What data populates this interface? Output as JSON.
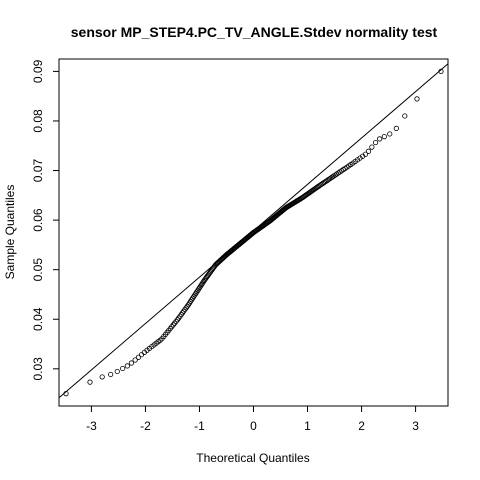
{
  "chart_data": {
    "type": "scatter",
    "subtype": "qq-plot",
    "title": "sensor MP_STEP4.PC_TV_ANGLE.Stdev normality test",
    "xlabel": "Theoretical Quantiles",
    "ylabel": "Sample Quantiles",
    "xlim": [
      -3.6,
      3.6
    ],
    "ylim": [
      0.0225,
      0.0925
    ],
    "xticks": [
      -3,
      -2,
      -1,
      0,
      1,
      2,
      3
    ],
    "yticks": [
      0.03,
      0.04,
      0.05,
      0.06,
      0.07,
      0.08,
      0.09
    ],
    "xtick_labels": [
      "-3",
      "-2",
      "-1",
      "0",
      "1",
      "2",
      "3"
    ],
    "ytick_labels": [
      "0.03",
      "0.04",
      "0.05",
      "0.06",
      "0.07",
      "0.08",
      "0.09"
    ],
    "grid": false,
    "marker": "open-circle",
    "reference_line": {
      "slope": 0.009357,
      "intercept": 0.05785
    },
    "quantile_curve": [
      [
        -3.47,
        0.025
      ],
      [
        -3.2,
        0.0255
      ],
      [
        -2.98,
        0.0278
      ],
      [
        -2.6,
        0.029
      ],
      [
        -2.3,
        0.0308
      ],
      [
        -2.0,
        0.0335
      ],
      [
        -1.7,
        0.036
      ],
      [
        -1.4,
        0.04
      ],
      [
        -1.2,
        0.043
      ],
      [
        -0.9,
        0.048
      ],
      [
        -0.7,
        0.051
      ],
      [
        -0.5,
        0.053
      ],
      [
        -0.3,
        0.0548
      ],
      [
        0.0,
        0.0575
      ],
      [
        0.3,
        0.0598
      ],
      [
        0.6,
        0.0625
      ],
      [
        0.9,
        0.0645
      ],
      [
        1.2,
        0.0668
      ],
      [
        1.5,
        0.069
      ],
      [
        1.8,
        0.0712
      ],
      [
        2.1,
        0.0735
      ],
      [
        2.3,
        0.0762
      ],
      [
        2.6,
        0.0778
      ],
      [
        2.8,
        0.081
      ],
      [
        3.0,
        0.0843
      ],
      [
        3.15,
        0.0852
      ],
      [
        3.47,
        0.09
      ]
    ],
    "n_points": 240
  }
}
